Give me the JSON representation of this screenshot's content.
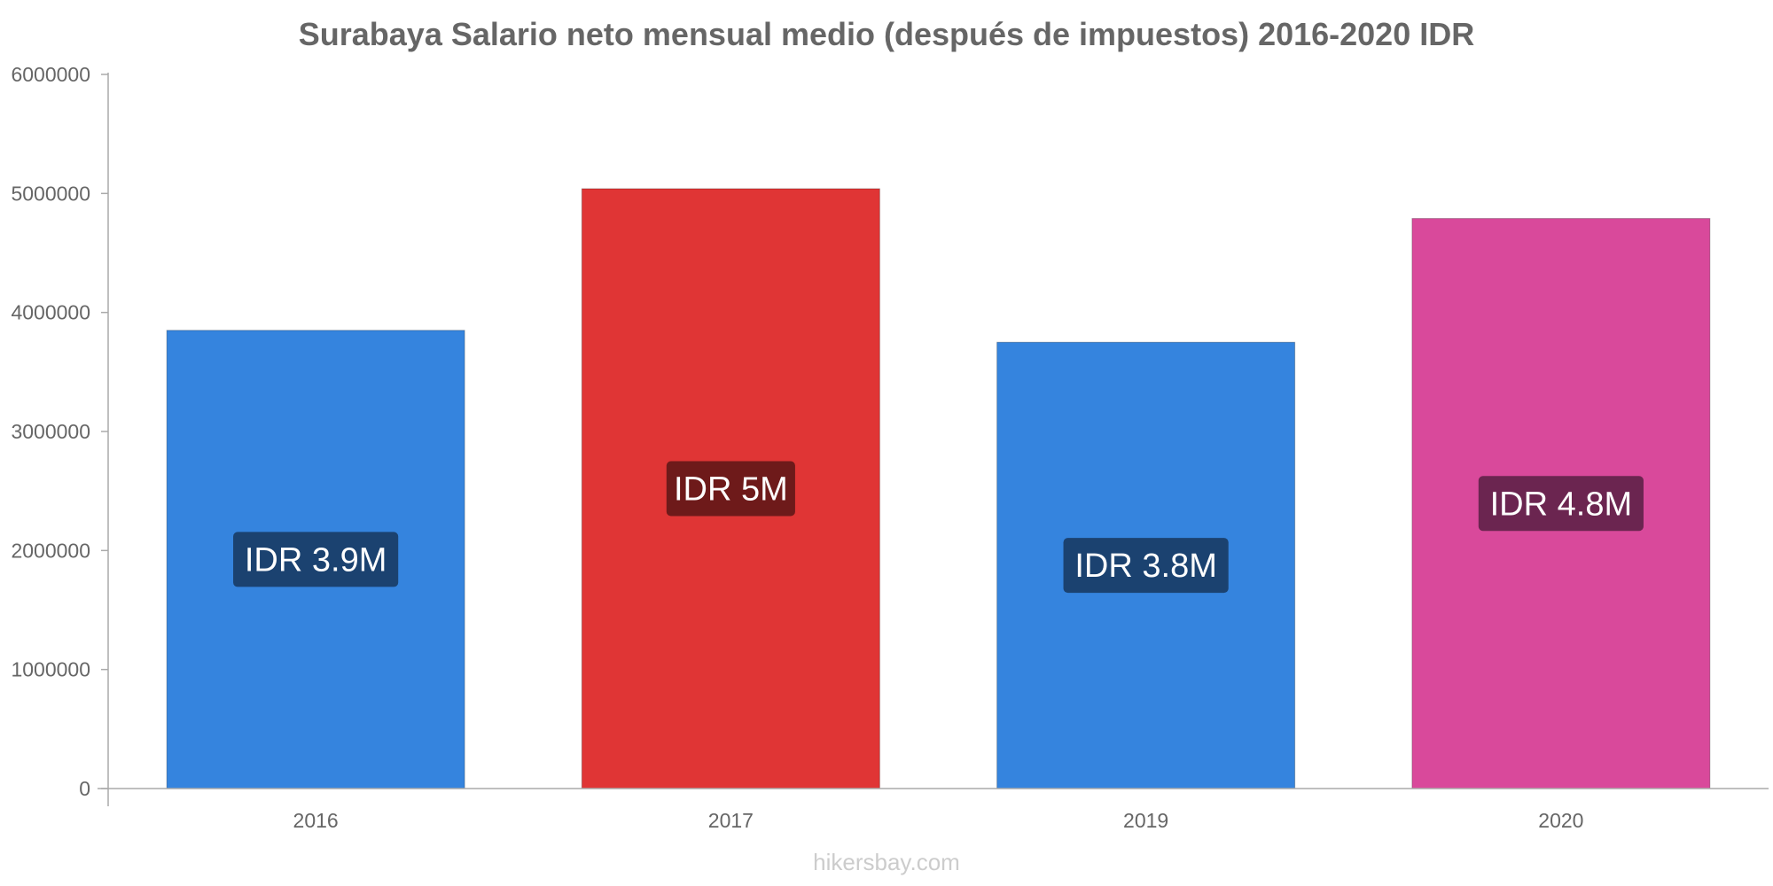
{
  "chart_data": {
    "type": "bar",
    "title": "Surabaya Salario neto mensual medio (después de impuestos) 2016-2020 IDR",
    "xlabel": "",
    "ylabel": "",
    "ylim": [
      0,
      6000000
    ],
    "yticks": [
      "0",
      "1000000",
      "2000000",
      "3000000",
      "4000000",
      "5000000",
      "6000000"
    ],
    "grid": false,
    "categories": [
      "2016",
      "2017",
      "2019",
      "2020"
    ],
    "values": [
      3850000,
      5040000,
      3750000,
      4790000
    ],
    "data_labels": [
      "IDR 3.9M",
      "IDR 5M",
      "IDR 3.8M",
      "IDR 4.8M"
    ],
    "colors": [
      "#3584de",
      "#e03535",
      "#3584de",
      "#d9499b"
    ],
    "label_box_colors": [
      "#1b4270",
      "#6e1a1a",
      "#1b4270",
      "#6b2550"
    ],
    "watermark": "hikersbay.com"
  }
}
